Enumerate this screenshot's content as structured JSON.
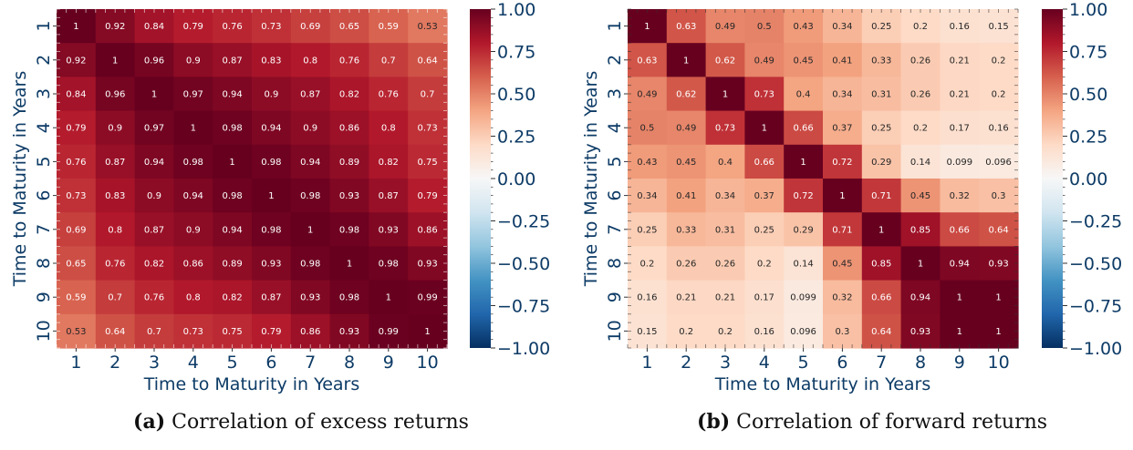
{
  "colormap": {
    "name": "RdBu_r",
    "stops": [
      "#053061",
      "#2166ac",
      "#4393c3",
      "#92c5de",
      "#d1e5f0",
      "#f7f7f7",
      "#fddbc7",
      "#f4a582",
      "#d6604d",
      "#b2182b",
      "#67001f"
    ]
  },
  "text_colors": {
    "dark": "#262626",
    "light": "#ffffff"
  },
  "label_color": "#0d3b66",
  "chart_data": [
    {
      "type": "heatmap",
      "title": "",
      "caption_prefix": "(a)",
      "caption_text": "Correlation of excess returns",
      "xlabel": "Time to Maturity in Years",
      "ylabel": "Time to Maturity in Years",
      "x_categories": [
        "1",
        "2",
        "3",
        "4",
        "5",
        "6",
        "7",
        "8",
        "9",
        "10"
      ],
      "y_categories": [
        "1",
        "2",
        "3",
        "4",
        "5",
        "6",
        "7",
        "8",
        "9",
        "10"
      ],
      "vmin": -1.0,
      "vmax": 1.0,
      "colorbar_ticks": [
        "1.00",
        "0.75",
        "0.50",
        "0.25",
        "0.00",
        "−0.25",
        "−0.50",
        "−0.75",
        "−1.00"
      ],
      "values": [
        [
          1,
          0.92,
          0.84,
          0.79,
          0.76,
          0.73,
          0.69,
          0.65,
          0.59,
          0.53
        ],
        [
          0.92,
          1,
          0.96,
          0.9,
          0.87,
          0.83,
          0.8,
          0.76,
          0.7,
          0.64
        ],
        [
          0.84,
          0.96,
          1,
          0.97,
          0.94,
          0.9,
          0.87,
          0.82,
          0.76,
          0.7
        ],
        [
          0.79,
          0.9,
          0.97,
          1,
          0.98,
          0.94,
          0.9,
          0.86,
          0.8,
          0.73
        ],
        [
          0.76,
          0.87,
          0.94,
          0.98,
          1,
          0.98,
          0.94,
          0.89,
          0.82,
          0.75
        ],
        [
          0.73,
          0.83,
          0.9,
          0.94,
          0.98,
          1,
          0.98,
          0.93,
          0.87,
          0.79
        ],
        [
          0.69,
          0.8,
          0.87,
          0.9,
          0.94,
          0.98,
          1,
          0.98,
          0.93,
          0.86
        ],
        [
          0.65,
          0.76,
          0.82,
          0.86,
          0.89,
          0.93,
          0.98,
          1,
          0.98,
          0.93
        ],
        [
          0.59,
          0.7,
          0.76,
          0.8,
          0.82,
          0.87,
          0.93,
          0.98,
          1,
          0.99
        ],
        [
          0.53,
          0.64,
          0.7,
          0.73,
          0.75,
          0.79,
          0.86,
          0.93,
          0.99,
          1
        ]
      ]
    },
    {
      "type": "heatmap",
      "title": "",
      "caption_prefix": "(b)",
      "caption_text": "Correlation of forward returns",
      "xlabel": "Time to Maturity in Years",
      "ylabel": "Time to Maturity in Years",
      "x_categories": [
        "1",
        "2",
        "3",
        "4",
        "5",
        "6",
        "7",
        "8",
        "9",
        "10"
      ],
      "y_categories": [
        "1",
        "2",
        "3",
        "4",
        "5",
        "6",
        "7",
        "8",
        "9",
        "10"
      ],
      "vmin": -1.0,
      "vmax": 1.0,
      "colorbar_ticks": [
        "1.00",
        "0.75",
        "0.50",
        "0.25",
        "0.00",
        "−0.25",
        "−0.50",
        "−0.75",
        "−1.00"
      ],
      "values": [
        [
          1,
          0.63,
          0.49,
          0.5,
          0.43,
          0.34,
          0.25,
          0.2,
          0.16,
          0.15
        ],
        [
          0.63,
          1,
          0.62,
          0.49,
          0.45,
          0.41,
          0.33,
          0.26,
          0.21,
          0.2
        ],
        [
          0.49,
          0.62,
          1,
          0.73,
          0.4,
          0.34,
          0.31,
          0.26,
          0.21,
          0.2
        ],
        [
          0.5,
          0.49,
          0.73,
          1,
          0.66,
          0.37,
          0.25,
          0.2,
          0.17,
          0.16
        ],
        [
          0.43,
          0.45,
          0.4,
          0.66,
          1,
          0.72,
          0.29,
          0.14,
          0.099,
          0.096
        ],
        [
          0.34,
          0.41,
          0.34,
          0.37,
          0.72,
          1,
          0.71,
          0.45,
          0.32,
          0.3
        ],
        [
          0.25,
          0.33,
          0.31,
          0.25,
          0.29,
          0.71,
          1,
          0.85,
          0.66,
          0.64
        ],
        [
          0.2,
          0.26,
          0.26,
          0.2,
          0.14,
          0.45,
          0.85,
          1,
          0.94,
          0.93
        ],
        [
          0.16,
          0.21,
          0.21,
          0.17,
          0.099,
          0.32,
          0.66,
          0.94,
          1,
          1
        ],
        [
          0.15,
          0.2,
          0.2,
          0.16,
          0.096,
          0.3,
          0.64,
          0.93,
          1,
          1
        ]
      ]
    }
  ]
}
